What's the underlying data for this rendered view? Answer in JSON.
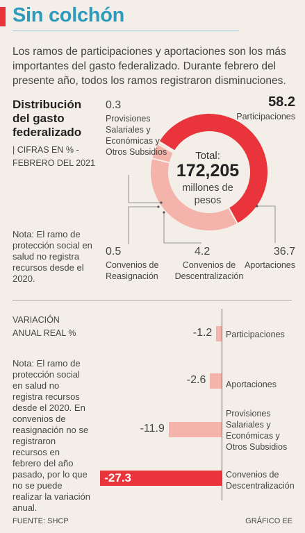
{
  "header": {
    "title": "Sin colchón",
    "intro": "Los ramos de participaciones y aportaciones son los más importantes del gasto federalizado. Durante febrero del presente año, todos los ramos registraron disminuciones."
  },
  "colors": {
    "accent_red": "#e8343a",
    "light_red": "#f4b3ab",
    "title_blue": "#2e9bbd",
    "background": "#f3efe8"
  },
  "donut": {
    "title_line1": "Distribución",
    "title_line2": "del gasto",
    "title_line3": "federalizado",
    "subtitle": "| CIFRAS EN % - FEBRERO DEL 2021",
    "total_label": "Total:",
    "total_value": "172,205",
    "total_unit": "millones de pesos",
    "note": "Nota: El ramo de protección social en salud no registra recursos desde el 2020.",
    "labels": {
      "participaciones": {
        "value": "58.2",
        "name": "Participaciones"
      },
      "provisiones": {
        "value": "0.3",
        "name": "Provisiones Salariales y Económicas y Otros Subsidios"
      },
      "reasignacion": {
        "value": "0.5",
        "name": "Convenios de Reasignación"
      },
      "descentralizacion": {
        "value": "4.2",
        "name": "Convenios de Descentralización"
      },
      "aportaciones": {
        "value": "36.7",
        "name": "Aportaciones"
      }
    }
  },
  "variation": {
    "title_line1": "VARIACIÓN",
    "title_line2": "ANUAL REAL %",
    "note": "Nota: El ramo de protección social en salud no registra recursos desde el 2020. En convenios de reasignación no se registraron recursos en febrero del año pasado, por lo que no se puede realizar la variación anual."
  },
  "chart_data": [
    {
      "type": "pie",
      "categories": [
        "Participaciones",
        "Aportaciones",
        "Convenios de Descentralización",
        "Convenios de Reasignación",
        "Provisiones Salariales y Económicas y Otros Subsidios"
      ],
      "values": [
        58.2,
        36.7,
        4.2,
        0.5,
        0.3
      ],
      "colors": [
        "#e8343a",
        "#f4b3ab",
        "#f4b3ab",
        "#f4b3ab",
        "#f4b3ab"
      ]
    },
    {
      "type": "bar",
      "orientation": "horizontal",
      "categories": [
        "Participaciones",
        "Aportaciones",
        "Provisiones Salariales y Económicas y Otros Subsidios",
        "Convenios de Descentralización"
      ],
      "values": [
        -1.2,
        -2.6,
        -11.9,
        -27.3
      ],
      "value_labels": [
        "-1.2",
        "-2.6",
        "-11.9",
        "-27.3"
      ],
      "highlight_index": 3
    }
  ],
  "footer": {
    "source": "FUENTE: SHCP",
    "credit": "GRÁFICO EE"
  }
}
